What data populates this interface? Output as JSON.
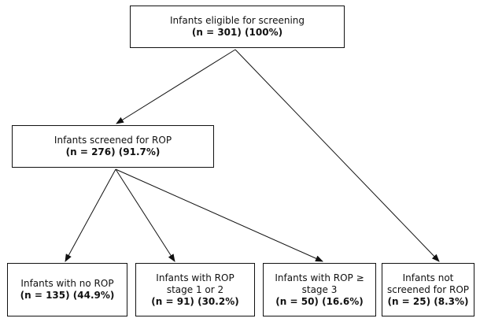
{
  "nodes": {
    "eligible": {
      "label": "Infants eligible for screening",
      "count": "(n = 301) (100%)"
    },
    "screened": {
      "label": "Infants screened for ROP",
      "count": "(n = 276) (91.7%)"
    },
    "no_rop": {
      "label": "Infants with no ROP",
      "count": "(n = 135) (44.9%)"
    },
    "stage_1_2": {
      "label_line1": "Infants with ROP",
      "label_line2": "stage 1 or 2",
      "count": "(n = 91) (30.2%)"
    },
    "stage_3": {
      "label_line1": "Infants with ROP ≥",
      "label_line2": "stage 3",
      "count": "(n = 50) (16.6%)"
    },
    "not_screened": {
      "label_line1": "Infants not",
      "label_line2": "screened for ROP",
      "count": "(n = 25) (8.3%)"
    }
  },
  "colors": {
    "stroke": "#111111",
    "background": "#ffffff"
  }
}
